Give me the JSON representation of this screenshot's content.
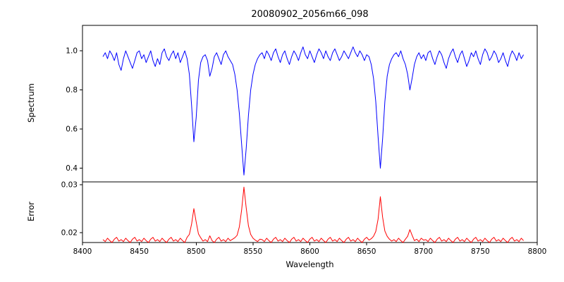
{
  "chart_data": {
    "type": "line",
    "title": "20080902_2056m66_098",
    "xlabel": "Wavelength",
    "xlim": [
      8400,
      8800
    ],
    "x_ticks": [
      8400,
      8450,
      8500,
      8550,
      8600,
      8650,
      8700,
      8750,
      8800
    ],
    "x_start": 8418,
    "x_step": 2,
    "grid": false,
    "legend": "none",
    "panels": [
      {
        "ylabel": "Spectrum",
        "ylim": [
          0.33,
          1.13
        ],
        "y_ticks": [
          0.4,
          0.6,
          0.8,
          1.0
        ],
        "y_tick_labels": [
          "0.4",
          "0.6",
          "0.8",
          "1.0"
        ]
      },
      {
        "ylabel": "Error",
        "ylim": [
          0.0179,
          0.0306
        ],
        "y_ticks": [
          0.02,
          0.03
        ],
        "y_tick_labels": [
          "0.02",
          "0.03"
        ]
      }
    ],
    "series": [
      {
        "name": "Spectrum",
        "panel": 0,
        "color": "#0000ff",
        "values": [
          0.97,
          0.99,
          0.96,
          1.0,
          0.98,
          0.95,
          0.99,
          0.93,
          0.9,
          0.96,
          1.0,
          0.97,
          0.94,
          0.91,
          0.95,
          0.99,
          1.0,
          0.96,
          0.98,
          0.94,
          0.97,
          1.0,
          0.95,
          0.92,
          0.96,
          0.93,
          0.99,
          1.01,
          0.97,
          0.95,
          0.98,
          1.0,
          0.96,
          0.99,
          0.94,
          0.97,
          1.0,
          0.96,
          0.88,
          0.72,
          0.535,
          0.66,
          0.85,
          0.94,
          0.97,
          0.98,
          0.95,
          0.87,
          0.91,
          0.97,
          0.99,
          0.96,
          0.93,
          0.98,
          1.0,
          0.97,
          0.95,
          0.93,
          0.88,
          0.8,
          0.68,
          0.52,
          0.365,
          0.5,
          0.67,
          0.8,
          0.88,
          0.93,
          0.96,
          0.98,
          0.99,
          0.96,
          1.0,
          0.98,
          0.95,
          0.99,
          1.01,
          0.97,
          0.94,
          0.98,
          1.0,
          0.96,
          0.93,
          0.97,
          1.0,
          0.98,
          0.95,
          0.99,
          1.02,
          0.98,
          0.96,
          1.0,
          0.97,
          0.94,
          0.98,
          1.01,
          0.99,
          0.96,
          1.0,
          0.97,
          0.95,
          0.99,
          1.01,
          0.98,
          0.95,
          0.97,
          1.0,
          0.98,
          0.96,
          0.99,
          1.02,
          0.99,
          0.97,
          1.0,
          0.98,
          0.95,
          0.98,
          0.97,
          0.93,
          0.86,
          0.74,
          0.56,
          0.4,
          0.55,
          0.74,
          0.87,
          0.93,
          0.96,
          0.98,
          0.99,
          0.97,
          1.0,
          0.96,
          0.93,
          0.88,
          0.8,
          0.86,
          0.93,
          0.97,
          0.99,
          0.96,
          0.98,
          0.95,
          0.99,
          1.0,
          0.96,
          0.93,
          0.97,
          1.0,
          0.98,
          0.94,
          0.91,
          0.96,
          0.99,
          1.01,
          0.97,
          0.94,
          0.98,
          1.0,
          0.96,
          0.92,
          0.95,
          0.99,
          0.97,
          1.0,
          0.96,
          0.93,
          0.98,
          1.01,
          0.99,
          0.95,
          0.97,
          1.0,
          0.98,
          0.94,
          0.96,
          0.99,
          0.95,
          0.92,
          0.97,
          1.0,
          0.98,
          0.95,
          0.99,
          0.96,
          0.98
        ]
      },
      {
        "name": "Error",
        "panel": 1,
        "color": "#ff0000",
        "values": [
          0.0185,
          0.0181,
          0.0188,
          0.0183,
          0.0179,
          0.0186,
          0.019,
          0.0182,
          0.0185,
          0.0181,
          0.0188,
          0.0183,
          0.0179,
          0.0186,
          0.019,
          0.0182,
          0.0185,
          0.0181,
          0.0188,
          0.0183,
          0.0179,
          0.0186,
          0.019,
          0.0182,
          0.0185,
          0.0181,
          0.0188,
          0.0183,
          0.0179,
          0.0186,
          0.019,
          0.0182,
          0.0185,
          0.0181,
          0.0188,
          0.0183,
          0.0179,
          0.019,
          0.0196,
          0.0218,
          0.025,
          0.0222,
          0.0197,
          0.0189,
          0.0182,
          0.0185,
          0.0181,
          0.0193,
          0.0183,
          0.0179,
          0.0186,
          0.019,
          0.0182,
          0.0185,
          0.0181,
          0.0188,
          0.0183,
          0.0186,
          0.0189,
          0.0194,
          0.0212,
          0.0248,
          0.0295,
          0.0252,
          0.0214,
          0.0196,
          0.0188,
          0.0184,
          0.0181,
          0.0186,
          0.0185,
          0.0181,
          0.0188,
          0.0183,
          0.0179,
          0.0186,
          0.019,
          0.0182,
          0.0185,
          0.0181,
          0.0188,
          0.0183,
          0.0179,
          0.0186,
          0.019,
          0.0182,
          0.0185,
          0.0181,
          0.0188,
          0.0183,
          0.0179,
          0.0186,
          0.019,
          0.0182,
          0.0185,
          0.0181,
          0.0188,
          0.0183,
          0.0179,
          0.0186,
          0.019,
          0.0182,
          0.0185,
          0.0181,
          0.0188,
          0.0183,
          0.0179,
          0.0186,
          0.019,
          0.0182,
          0.0185,
          0.0181,
          0.0188,
          0.0183,
          0.0179,
          0.0186,
          0.019,
          0.0184,
          0.0187,
          0.0192,
          0.0202,
          0.0228,
          0.0275,
          0.0232,
          0.0203,
          0.0192,
          0.0186,
          0.0182,
          0.0185,
          0.0181,
          0.0188,
          0.0183,
          0.0179,
          0.0186,
          0.0192,
          0.0206,
          0.0194,
          0.0183,
          0.0186,
          0.0181,
          0.0188,
          0.0184,
          0.0185,
          0.0181,
          0.0188,
          0.0183,
          0.0179,
          0.0186,
          0.019,
          0.0182,
          0.0185,
          0.0181,
          0.0188,
          0.0183,
          0.0179,
          0.0186,
          0.019,
          0.0182,
          0.0185,
          0.0181,
          0.0188,
          0.0183,
          0.0179,
          0.0186,
          0.019,
          0.0182,
          0.0185,
          0.0181,
          0.0188,
          0.0183,
          0.0179,
          0.0186,
          0.019,
          0.0182,
          0.0185,
          0.0181,
          0.0188,
          0.0183,
          0.0179,
          0.0186,
          0.019,
          0.0182,
          0.0185,
          0.0181,
          0.0188,
          0.0183
        ]
      }
    ]
  }
}
